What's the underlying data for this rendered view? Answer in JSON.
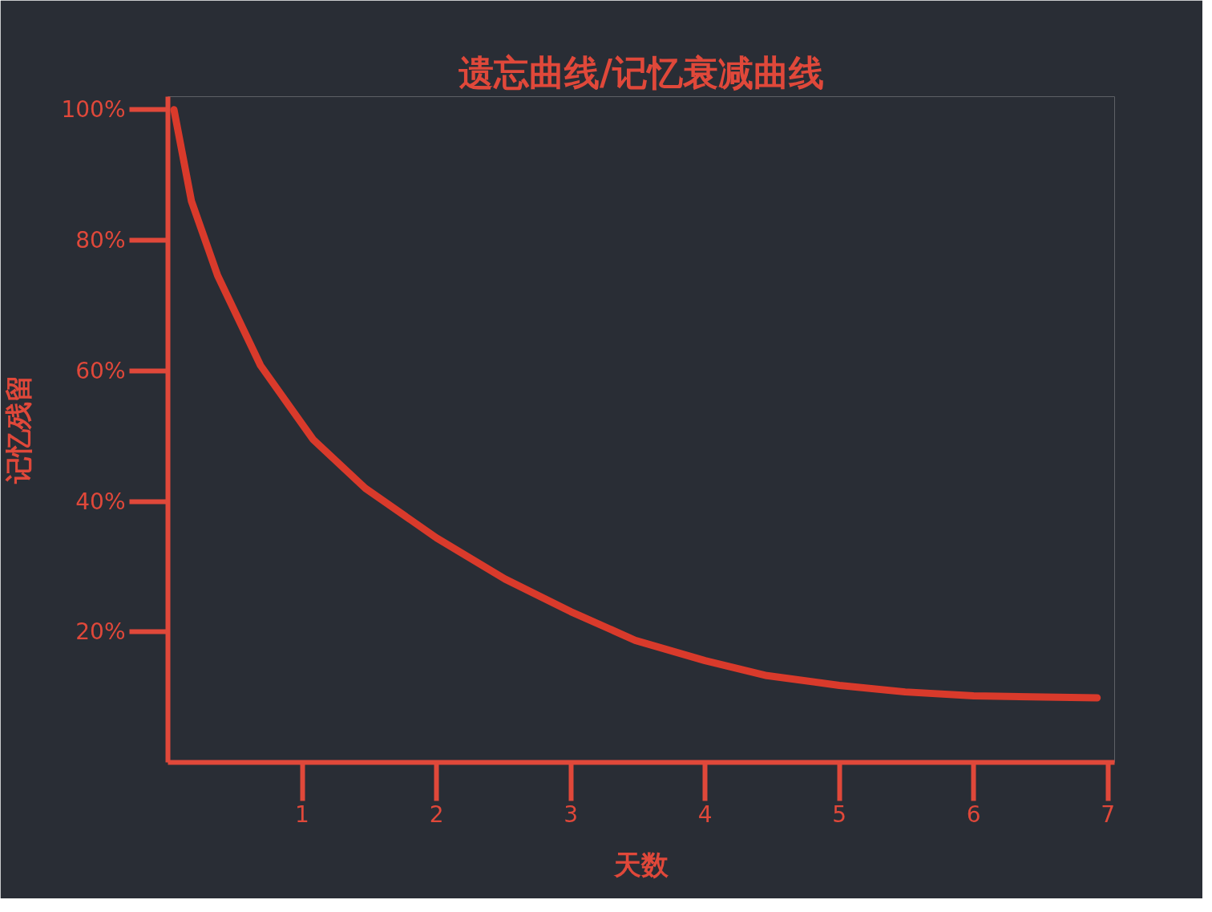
{
  "chart_data": {
    "type": "line",
    "title": "遗忘曲线/记忆衰减曲线",
    "xlabel": "天数",
    "ylabel": "记忆残留",
    "series": [
      {
        "color": "#d93a2b",
        "x": [
          0.045,
          0.175,
          0.37,
          0.69,
          1.08,
          1.47,
          2,
          2.51,
          3,
          3.48,
          4,
          4.46,
          5,
          5.49,
          6,
          6.92
        ],
        "values": [
          100,
          86,
          74.6,
          60.8,
          49.5,
          42,
          34.4,
          28.1,
          23.1,
          18.7,
          15.6,
          13.3,
          11.8,
          10.8,
          10.2,
          9.9
        ]
      }
    ],
    "xlim": [
      0,
      7.05
    ],
    "xticks": [
      1,
      2,
      3,
      4,
      5,
      6,
      7
    ],
    "ylim": [
      0,
      102
    ],
    "yticks": [
      {
        "value": 20,
        "label": "20%"
      },
      {
        "value": 40,
        "label": "40%"
      },
      {
        "value": 60,
        "label": "60%"
      },
      {
        "value": 80,
        "label": "80%"
      },
      {
        "value": 100,
        "label": "100%"
      }
    ],
    "grid": false,
    "line_style": "solid"
  }
}
